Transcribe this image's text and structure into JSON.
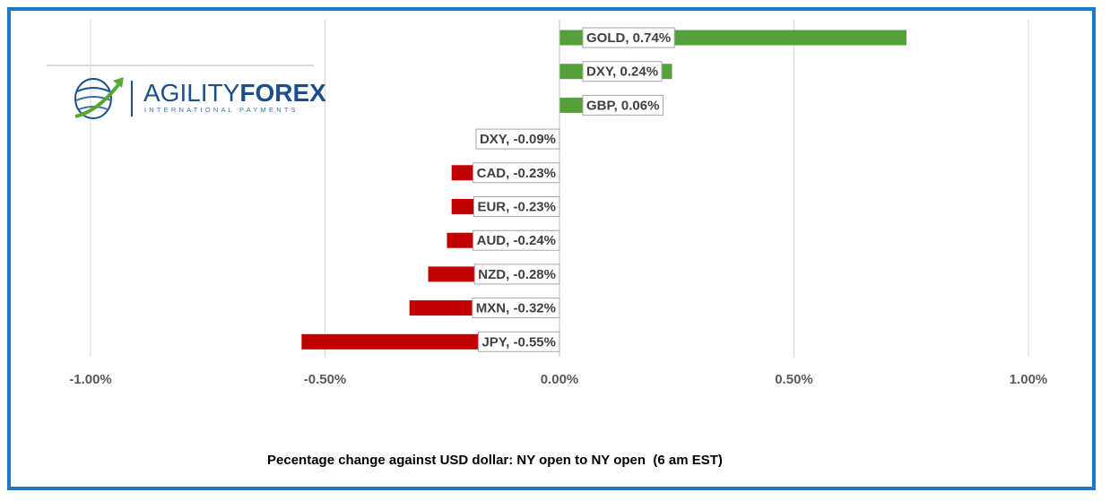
{
  "logo": {
    "name_part1": "AGILITY",
    "name_part2": "FOREX",
    "tagline": "INTERNATIONAL PAYMENTS"
  },
  "colors": {
    "positive": "#56a03b",
    "negative": "#c00000",
    "frame": "#1f77c6",
    "grid": "#d9d9d9"
  },
  "chart_data": {
    "type": "bar",
    "orientation": "horizontal",
    "categories": [
      "GOLD",
      "DXY",
      "GBP",
      "DXY",
      "CAD",
      "EUR",
      "AUD",
      "NZD",
      "MXN",
      "JPY"
    ],
    "values": [
      0.74,
      0.24,
      0.06,
      -0.09,
      -0.23,
      -0.23,
      -0.24,
      -0.28,
      -0.32,
      -0.55
    ],
    "data_labels": [
      "GOLD, 0.74%",
      "DXY, 0.24%",
      "GBP, 0.06%",
      "DXY, -0.09%",
      "CAD, -0.23%",
      "EUR, -0.23%",
      "AUD, -0.24%",
      "NZD, -0.28%",
      "MXN, -0.32%",
      "JPY, -0.55%"
    ],
    "xlabel": "Pecentage change against USD dollar: NY open to NY open  (6 am EST)",
    "xlim": [
      -1.0,
      1.0
    ],
    "xticks": [
      -1.0,
      -0.5,
      0.0,
      0.5,
      1.0
    ],
    "xtick_labels": [
      "-1.00%",
      "-0.50%",
      "0.00%",
      "0.50%",
      "1.00%"
    ],
    "grid": "vertical"
  }
}
